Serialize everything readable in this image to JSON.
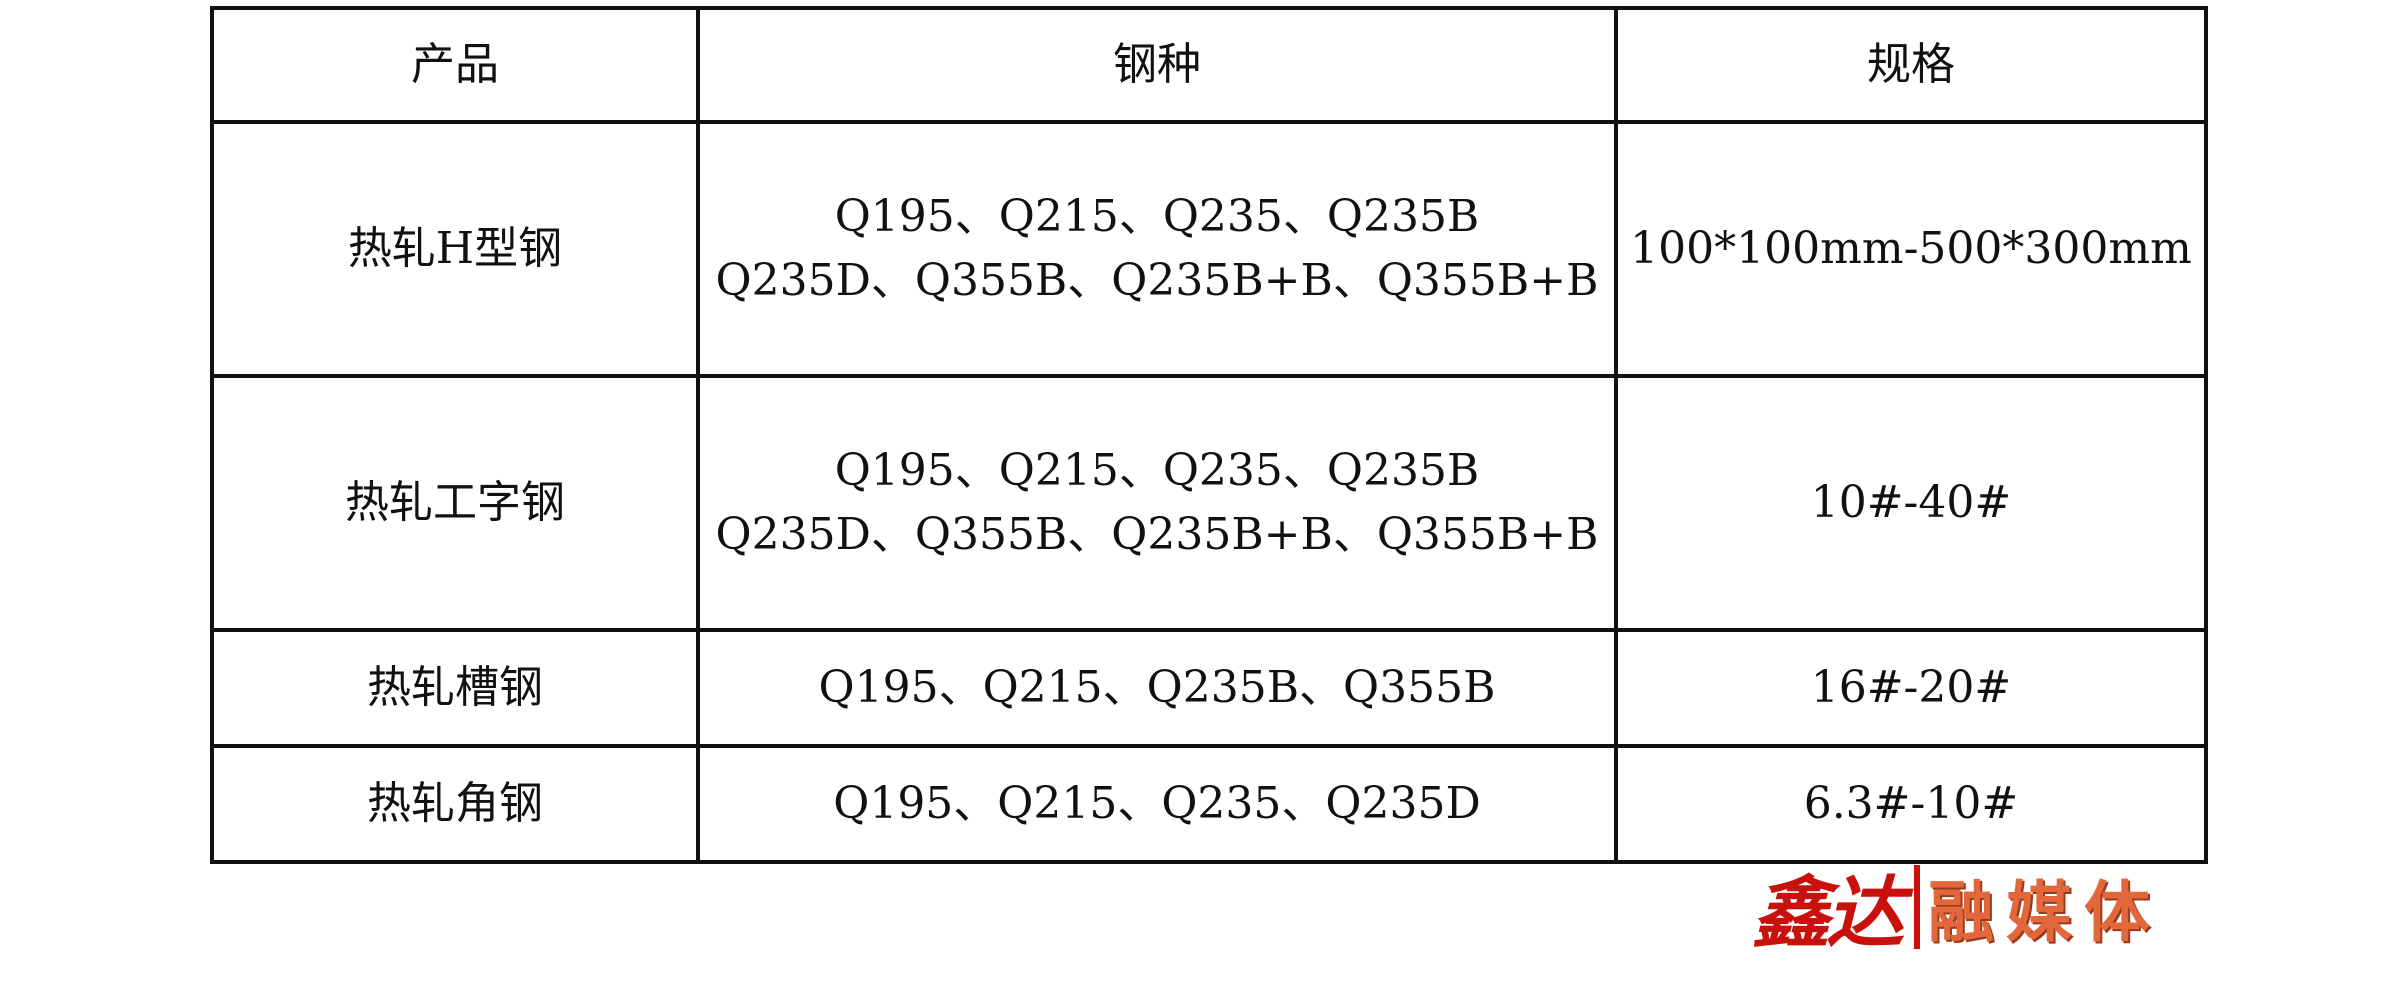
{
  "table": {
    "headers": [
      "产品",
      "钢种",
      "规格"
    ],
    "rows": [
      {
        "product": "热轧H型钢",
        "grades": [
          "Q195、Q215、Q235、Q235B",
          "Q235D、Q355B、Q235B+B、Q355B+B"
        ],
        "spec": "100*100mm-500*300mm"
      },
      {
        "product": "热轧工字钢",
        "grades": [
          "Q195、Q215、Q235、Q235B",
          "Q235D、Q355B、Q235B+B、Q355B+B"
        ],
        "spec": "10#-40#"
      },
      {
        "product": "热轧槽钢",
        "grades": [
          "Q195、Q215、Q235B、Q355B"
        ],
        "spec": "16#-20#"
      },
      {
        "product": "热轧角钢",
        "grades": [
          "Q195、Q215、Q235、Q235D"
        ],
        "spec": "6.3#-10#"
      }
    ]
  },
  "logo": {
    "part1": "鑫达",
    "part2": "融媒体",
    "colors": {
      "part1": "#c8100c",
      "part2": "#e2683c"
    }
  }
}
